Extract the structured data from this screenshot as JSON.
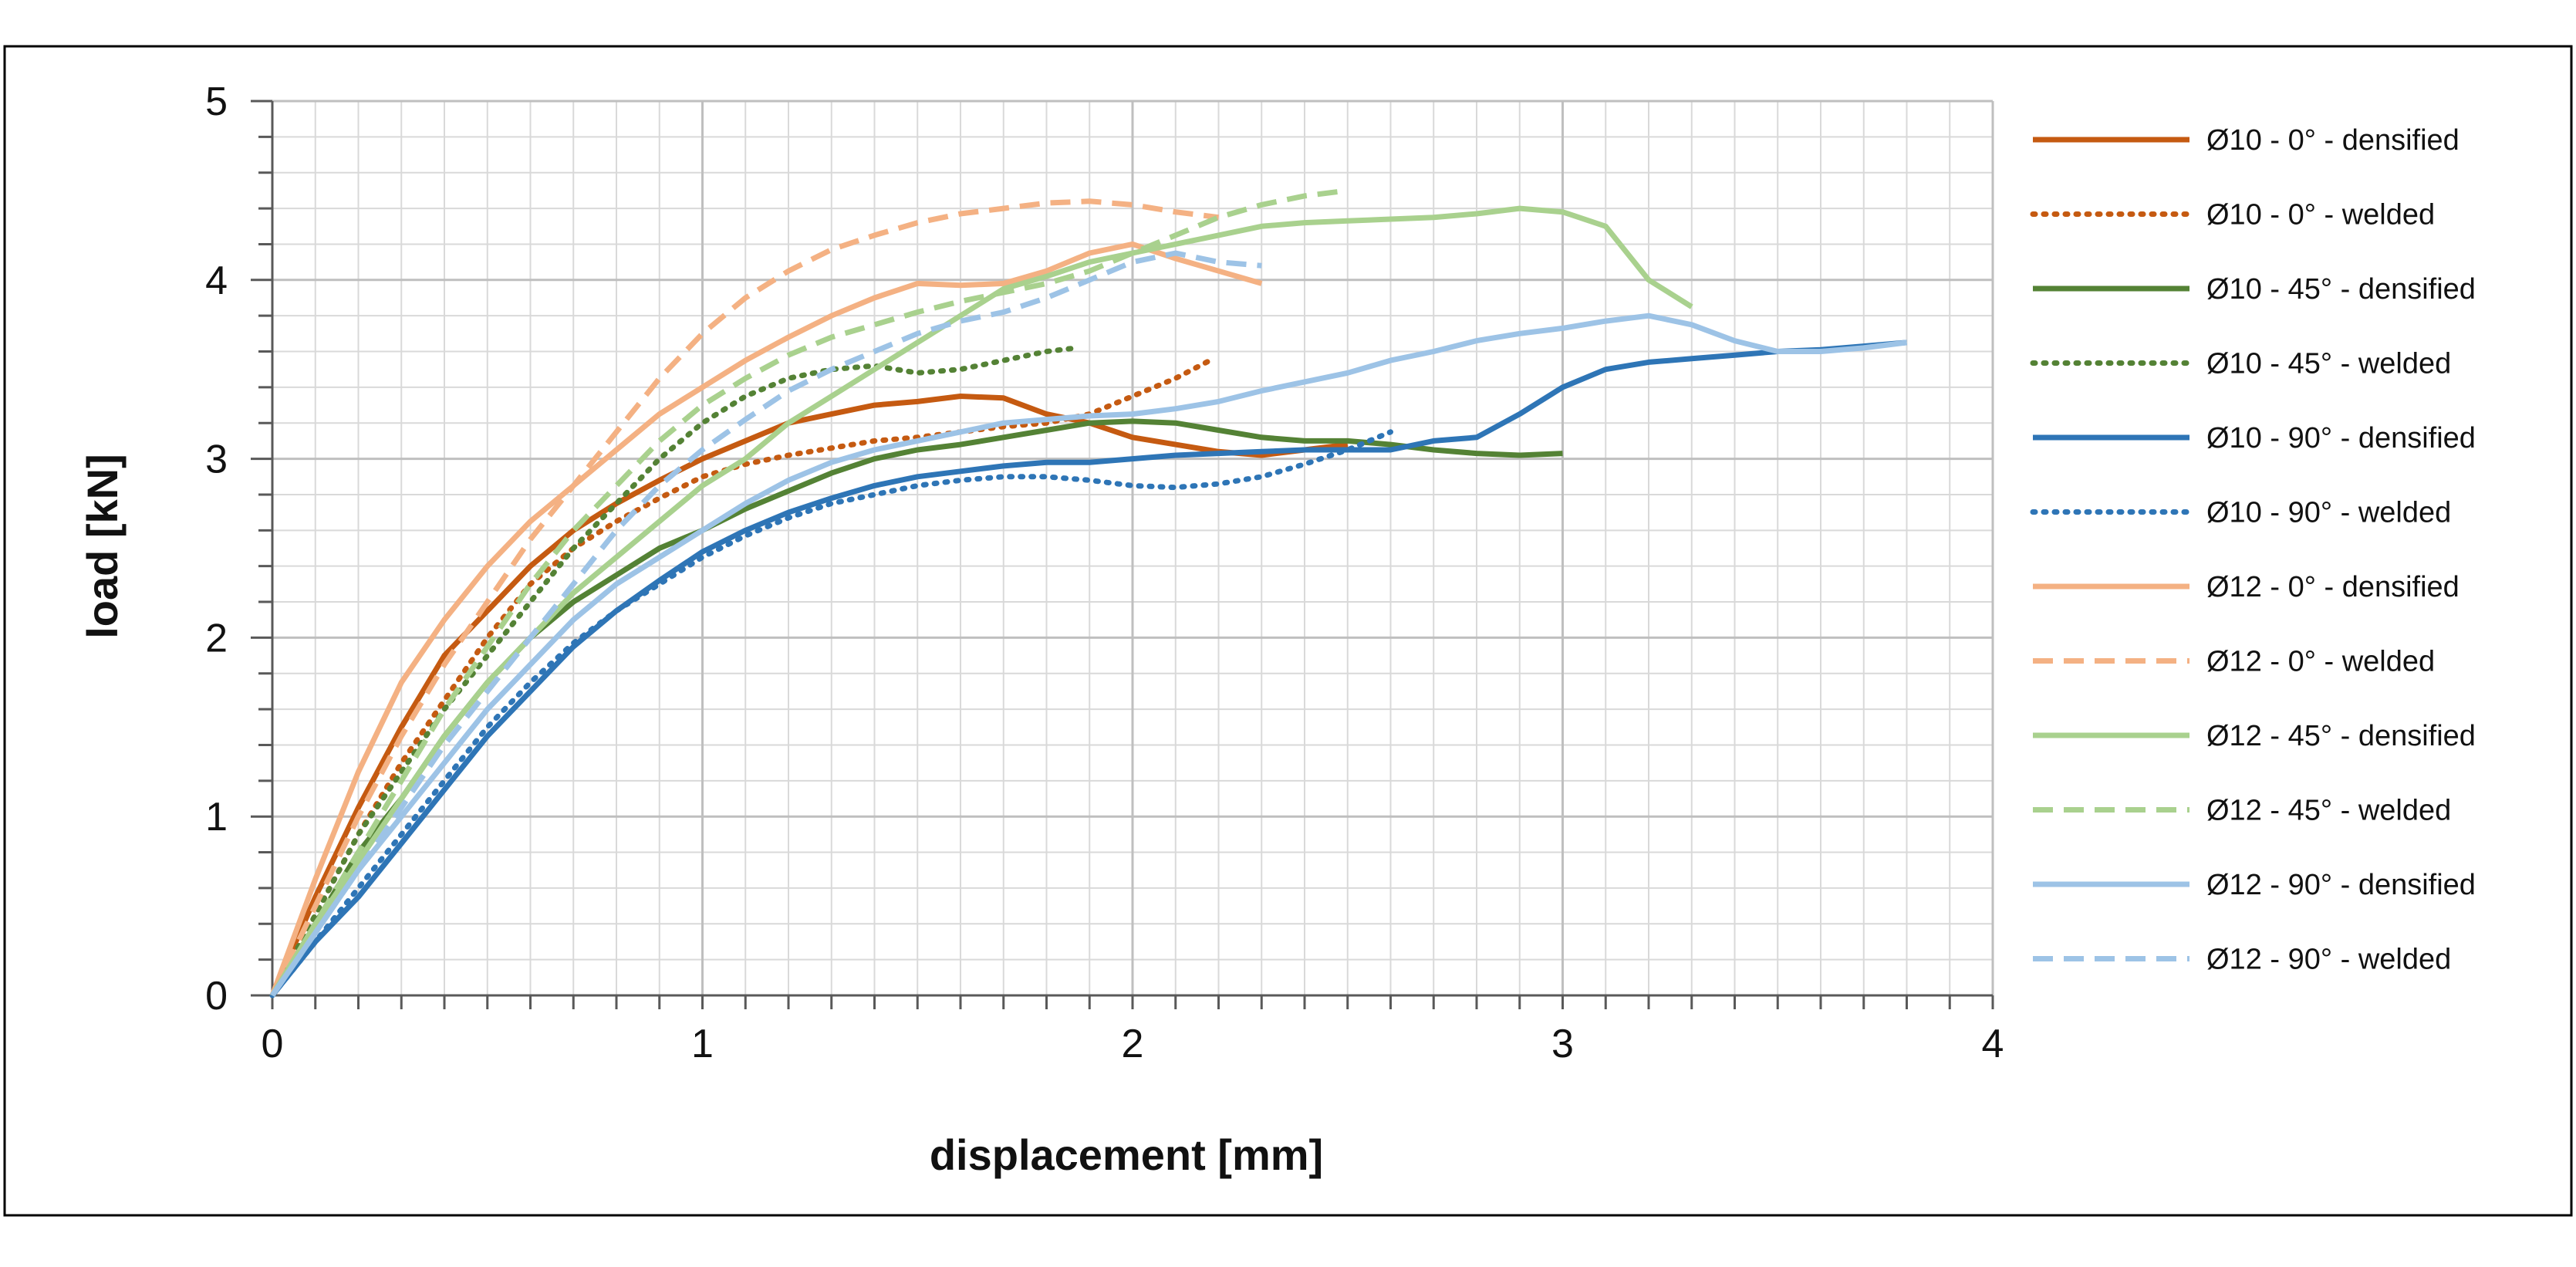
{
  "chart_data": {
    "type": "line",
    "title": "",
    "xlabel": "displacement [mm]",
    "ylabel": "load [kN]",
    "xlim": [
      0,
      4
    ],
    "ylim": [
      0,
      5
    ],
    "x_ticks": [
      "0",
      "1",
      "2",
      "3",
      "4"
    ],
    "y_ticks": [
      "0",
      "1",
      "2",
      "3",
      "4",
      "5"
    ],
    "grid": true,
    "legend_position": "right",
    "series": [
      {
        "name": "Ø10 - 0° - densified",
        "color": "#c55a11",
        "style": "solid",
        "x": [
          0,
          0.1,
          0.2,
          0.3,
          0.4,
          0.5,
          0.6,
          0.7,
          0.8,
          0.9,
          1.0,
          1.1,
          1.2,
          1.3,
          1.4,
          1.5,
          1.6,
          1.7,
          1.8,
          1.9,
          2.0,
          2.1,
          2.2,
          2.3,
          2.4,
          2.5
        ],
        "y": [
          0,
          0.55,
          1.05,
          1.5,
          1.9,
          2.15,
          2.4,
          2.6,
          2.75,
          2.88,
          3.0,
          3.1,
          3.2,
          3.25,
          3.3,
          3.32,
          3.35,
          3.34,
          3.25,
          3.2,
          3.12,
          3.08,
          3.04,
          3.02,
          3.05,
          3.08
        ]
      },
      {
        "name": "Ø10 - 0° - welded",
        "color": "#c55a11",
        "style": "dotted",
        "x": [
          0,
          0.1,
          0.2,
          0.3,
          0.4,
          0.5,
          0.6,
          0.7,
          0.8,
          0.9,
          1.0,
          1.1,
          1.2,
          1.3,
          1.4,
          1.5,
          1.6,
          1.7,
          1.8,
          1.9,
          2.0,
          2.1,
          2.18
        ],
        "y": [
          0,
          0.45,
          0.9,
          1.3,
          1.65,
          2.0,
          2.3,
          2.5,
          2.65,
          2.78,
          2.9,
          2.97,
          3.02,
          3.06,
          3.1,
          3.12,
          3.15,
          3.18,
          3.2,
          3.25,
          3.35,
          3.45,
          3.55
        ]
      },
      {
        "name": "Ø10 - 45° - densified",
        "color": "#548235",
        "style": "solid",
        "x": [
          0,
          0.1,
          0.2,
          0.3,
          0.4,
          0.5,
          0.6,
          0.7,
          0.8,
          0.9,
          1.0,
          1.1,
          1.2,
          1.3,
          1.4,
          1.5,
          1.6,
          1.7,
          1.8,
          1.9,
          2.0,
          2.1,
          2.2,
          2.3,
          2.4,
          2.5,
          2.6,
          2.7,
          2.8,
          2.9,
          3.0
        ],
        "y": [
          0,
          0.4,
          0.8,
          1.1,
          1.45,
          1.75,
          2.0,
          2.2,
          2.35,
          2.5,
          2.6,
          2.72,
          2.82,
          2.92,
          3.0,
          3.05,
          3.08,
          3.12,
          3.16,
          3.2,
          3.21,
          3.2,
          3.16,
          3.12,
          3.1,
          3.1,
          3.08,
          3.05,
          3.03,
          3.02,
          3.03
        ]
      },
      {
        "name": "Ø10 - 45° - welded",
        "color": "#548235",
        "style": "dotted",
        "x": [
          0,
          0.1,
          0.2,
          0.3,
          0.4,
          0.5,
          0.6,
          0.7,
          0.8,
          0.9,
          1.0,
          1.1,
          1.2,
          1.3,
          1.4,
          1.5,
          1.6,
          1.7,
          1.8,
          1.87
        ],
        "y": [
          0,
          0.45,
          0.9,
          1.25,
          1.6,
          1.9,
          2.2,
          2.5,
          2.75,
          3.0,
          3.2,
          3.35,
          3.45,
          3.5,
          3.52,
          3.48,
          3.5,
          3.55,
          3.6,
          3.62
        ]
      },
      {
        "name": "Ø10 - 90° - densified",
        "color": "#2e75b6",
        "style": "solid",
        "x": [
          0,
          0.1,
          0.2,
          0.3,
          0.4,
          0.5,
          0.6,
          0.7,
          0.8,
          0.9,
          1.0,
          1.1,
          1.2,
          1.3,
          1.4,
          1.5,
          1.6,
          1.7,
          1.8,
          1.9,
          2.0,
          2.1,
          2.2,
          2.3,
          2.4,
          2.5,
          2.6,
          2.7,
          2.8,
          2.9,
          3.0,
          3.1,
          3.2,
          3.3,
          3.4,
          3.5,
          3.6,
          3.7,
          3.8
        ],
        "y": [
          0,
          0.3,
          0.55,
          0.85,
          1.15,
          1.45,
          1.7,
          1.95,
          2.15,
          2.32,
          2.48,
          2.6,
          2.7,
          2.78,
          2.85,
          2.9,
          2.93,
          2.96,
          2.98,
          2.98,
          3.0,
          3.02,
          3.03,
          3.04,
          3.05,
          3.05,
          3.05,
          3.1,
          3.12,
          3.25,
          3.4,
          3.5,
          3.54,
          3.56,
          3.58,
          3.6,
          3.61,
          3.63,
          3.65
        ]
      },
      {
        "name": "Ø10 - 90° - welded",
        "color": "#2e75b6",
        "style": "dotted",
        "x": [
          0,
          0.1,
          0.2,
          0.3,
          0.4,
          0.5,
          0.6,
          0.7,
          0.8,
          0.9,
          1.0,
          1.1,
          1.2,
          1.3,
          1.4,
          1.5,
          1.6,
          1.7,
          1.8,
          1.9,
          2.0,
          2.1,
          2.2,
          2.3,
          2.4,
          2.5,
          2.6
        ],
        "y": [
          0,
          0.3,
          0.6,
          0.9,
          1.2,
          1.5,
          1.75,
          1.97,
          2.15,
          2.3,
          2.45,
          2.57,
          2.67,
          2.75,
          2.8,
          2.85,
          2.88,
          2.9,
          2.9,
          2.88,
          2.85,
          2.84,
          2.86,
          2.9,
          2.97,
          3.05,
          3.15
        ]
      },
      {
        "name": "Ø12 - 0° - densified",
        "color": "#f4b183",
        "style": "solid",
        "x": [
          0,
          0.1,
          0.2,
          0.3,
          0.4,
          0.5,
          0.6,
          0.7,
          0.8,
          0.9,
          1.0,
          1.1,
          1.2,
          1.3,
          1.4,
          1.5,
          1.6,
          1.7,
          1.8,
          1.9,
          2.0,
          2.1,
          2.2,
          2.3
        ],
        "y": [
          0,
          0.65,
          1.25,
          1.75,
          2.1,
          2.4,
          2.65,
          2.85,
          3.05,
          3.25,
          3.4,
          3.55,
          3.68,
          3.8,
          3.9,
          3.98,
          3.97,
          3.98,
          4.05,
          4.15,
          4.2,
          4.12,
          4.05,
          3.98
        ]
      },
      {
        "name": "Ø12 - 0° - welded",
        "color": "#f4b183",
        "style": "dashed",
        "x": [
          0,
          0.1,
          0.2,
          0.3,
          0.4,
          0.5,
          0.6,
          0.7,
          0.8,
          0.9,
          1.0,
          1.1,
          1.2,
          1.3,
          1.4,
          1.5,
          1.6,
          1.7,
          1.8,
          1.9,
          2.0,
          2.1,
          2.2
        ],
        "y": [
          0,
          0.5,
          1.0,
          1.45,
          1.85,
          2.2,
          2.55,
          2.85,
          3.15,
          3.45,
          3.7,
          3.9,
          4.05,
          4.17,
          4.25,
          4.32,
          4.37,
          4.4,
          4.43,
          4.44,
          4.42,
          4.38,
          4.35
        ]
      },
      {
        "name": "Ø12 - 45° - densified",
        "color": "#a9d18e",
        "style": "solid",
        "x": [
          0,
          0.1,
          0.2,
          0.3,
          0.4,
          0.5,
          0.6,
          0.7,
          0.8,
          0.9,
          1.0,
          1.1,
          1.2,
          1.3,
          1.4,
          1.5,
          1.6,
          1.7,
          1.8,
          1.9,
          2.0,
          2.1,
          2.2,
          2.3,
          2.4,
          2.5,
          2.6,
          2.7,
          2.8,
          2.9,
          3.0,
          3.1,
          3.2,
          3.3
        ],
        "y": [
          0,
          0.4,
          0.75,
          1.1,
          1.45,
          1.75,
          2.0,
          2.25,
          2.45,
          2.65,
          2.85,
          3.0,
          3.2,
          3.35,
          3.5,
          3.65,
          3.8,
          3.95,
          4.02,
          4.1,
          4.15,
          4.2,
          4.25,
          4.3,
          4.32,
          4.33,
          4.34,
          4.35,
          4.37,
          4.4,
          4.38,
          4.3,
          4.0,
          3.85
        ]
      },
      {
        "name": "Ø12 - 45° - welded",
        "color": "#a9d18e",
        "style": "dashed",
        "x": [
          0,
          0.1,
          0.2,
          0.3,
          0.4,
          0.5,
          0.6,
          0.7,
          0.8,
          0.9,
          1.0,
          1.1,
          1.2,
          1.3,
          1.4,
          1.5,
          1.6,
          1.7,
          1.8,
          1.9,
          2.0,
          2.1,
          2.2,
          2.3,
          2.4,
          2.5
        ],
        "y": [
          0,
          0.4,
          0.8,
          1.2,
          1.6,
          1.95,
          2.3,
          2.6,
          2.85,
          3.1,
          3.3,
          3.45,
          3.58,
          3.68,
          3.75,
          3.82,
          3.88,
          3.93,
          3.98,
          4.05,
          4.15,
          4.25,
          4.35,
          4.42,
          4.47,
          4.5
        ]
      },
      {
        "name": "Ø12 - 90° - densified",
        "color": "#9dc3e6",
        "style": "solid",
        "x": [
          0,
          0.1,
          0.2,
          0.3,
          0.4,
          0.5,
          0.6,
          0.7,
          0.8,
          0.9,
          1.0,
          1.1,
          1.2,
          1.3,
          1.4,
          1.5,
          1.6,
          1.7,
          1.8,
          1.9,
          2.0,
          2.1,
          2.2,
          2.3,
          2.4,
          2.5,
          2.6,
          2.7,
          2.8,
          2.9,
          3.0,
          3.1,
          3.2,
          3.3,
          3.4,
          3.5,
          3.6,
          3.7,
          3.8
        ],
        "y": [
          0,
          0.35,
          0.7,
          1.0,
          1.3,
          1.6,
          1.85,
          2.1,
          2.3,
          2.45,
          2.6,
          2.75,
          2.88,
          2.98,
          3.05,
          3.1,
          3.15,
          3.2,
          3.22,
          3.24,
          3.25,
          3.28,
          3.32,
          3.38,
          3.43,
          3.48,
          3.55,
          3.6,
          3.66,
          3.7,
          3.73,
          3.77,
          3.8,
          3.75,
          3.66,
          3.6,
          3.6,
          3.62,
          3.65
        ]
      },
      {
        "name": "Ø12 - 90° - welded",
        "color": "#9dc3e6",
        "style": "dashed",
        "x": [
          0,
          0.1,
          0.2,
          0.3,
          0.4,
          0.5,
          0.6,
          0.7,
          0.8,
          0.9,
          1.0,
          1.1,
          1.2,
          1.3,
          1.4,
          1.5,
          1.6,
          1.7,
          1.8,
          1.9,
          2.0,
          2.1,
          2.2,
          2.3
        ],
        "y": [
          0,
          0.35,
          0.7,
          1.05,
          1.4,
          1.7,
          2.0,
          2.3,
          2.6,
          2.85,
          3.05,
          3.22,
          3.38,
          3.5,
          3.6,
          3.7,
          3.77,
          3.82,
          3.9,
          4.0,
          4.1,
          4.15,
          4.1,
          4.08
        ]
      }
    ]
  }
}
